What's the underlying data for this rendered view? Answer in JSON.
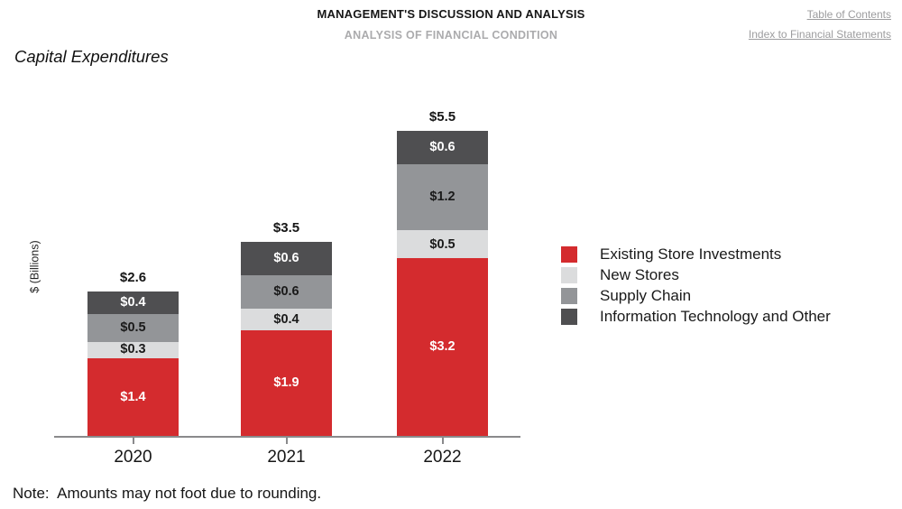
{
  "header": {
    "line1": "MANAGEMENT'S DISCUSSION AND ANALYSIS",
    "line2": "ANALYSIS OF FINANCIAL CONDITION",
    "links": [
      {
        "label": "Table of Contents"
      },
      {
        "label": "Index to Financial Statements"
      }
    ]
  },
  "section_title": "Capital Expenditures",
  "note": "Note:  Amounts may not foot due to rounding.",
  "chart_data": {
    "type": "bar",
    "stacked": true,
    "title": "Capital Expenditures",
    "ylabel": "$ (Billions)",
    "xlabel": "",
    "categories": [
      "2020",
      "2021",
      "2022"
    ],
    "series": [
      {
        "name": "Existing Store Investments",
        "values": [
          1.4,
          1.9,
          3.2
        ],
        "color": "#d42b2e",
        "label_color": "#ffffff"
      },
      {
        "name": "New Stores",
        "values": [
          0.3,
          0.4,
          0.5
        ],
        "color": "#dbdcdd",
        "label_color": "#1a1a1a"
      },
      {
        "name": "Supply Chain",
        "values": [
          0.5,
          0.6,
          1.2
        ],
        "color": "#939598",
        "label_color": "#1a1a1a"
      },
      {
        "name": "Information Technology and Other",
        "values": [
          0.4,
          0.6,
          0.6
        ],
        "color": "#4f4f51",
        "label_color": "#ffffff"
      }
    ],
    "totals": [
      2.6,
      3.5,
      5.5
    ],
    "value_prefix": "$",
    "legend_position": "right",
    "grid": false,
    "ylim": [
      0,
      6
    ]
  }
}
